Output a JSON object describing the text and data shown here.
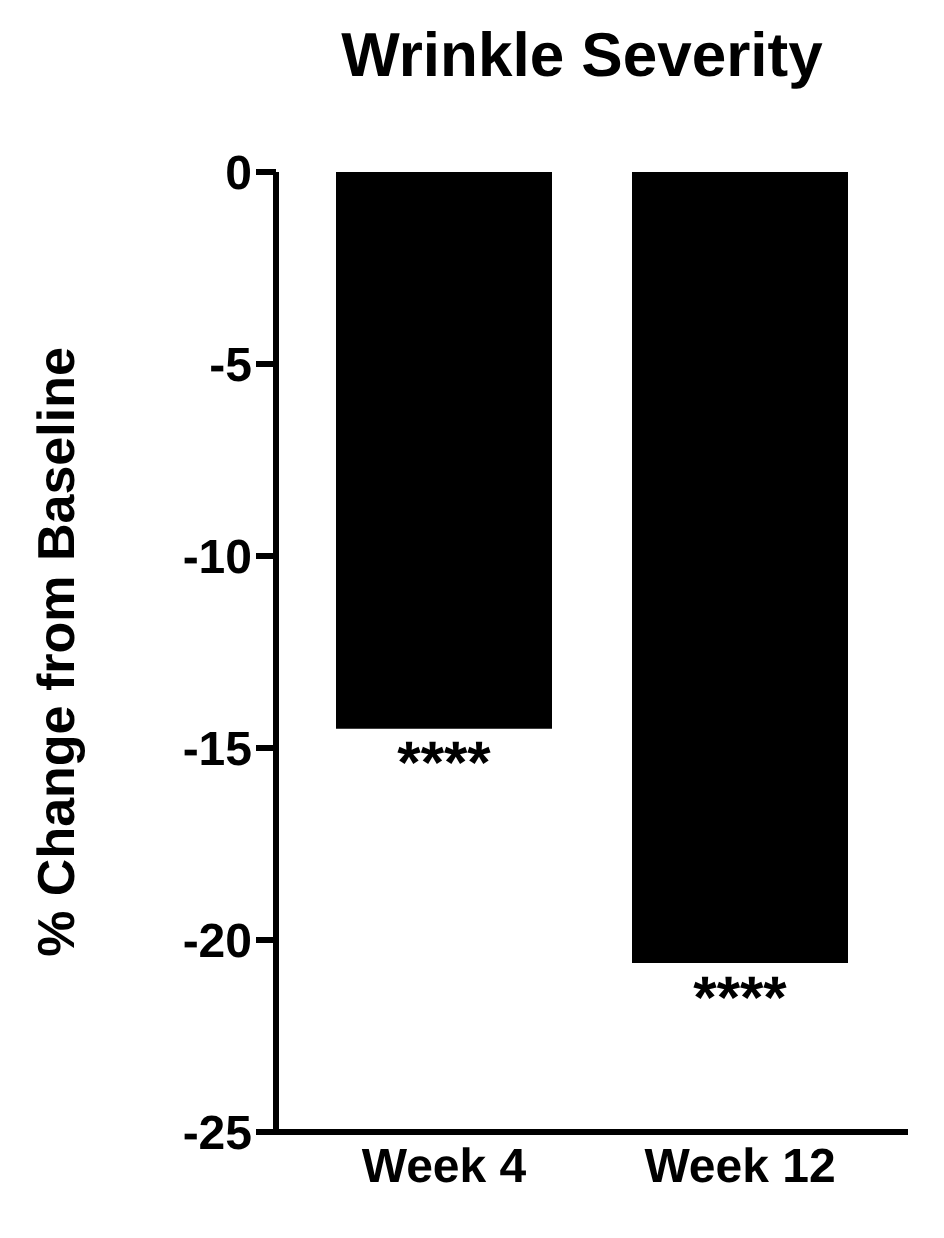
{
  "chart_data": {
    "type": "bar",
    "title": "Wrinkle Severity",
    "ylabel": "% Change from Baseline",
    "categories": [
      "Week 4",
      "Week 12"
    ],
    "values": [
      -14.5,
      -20.6
    ],
    "color": "#000000",
    "ylim": [
      -25,
      0
    ],
    "yticks": [
      0,
      -5,
      -10,
      -15,
      -20,
      -25
    ],
    "grid": false,
    "legend": false,
    "annotations": [
      {
        "text": "****",
        "x": "Week 4",
        "y": -14.5
      },
      {
        "text": "****",
        "x": "Week 12",
        "y": -20.6
      }
    ]
  }
}
